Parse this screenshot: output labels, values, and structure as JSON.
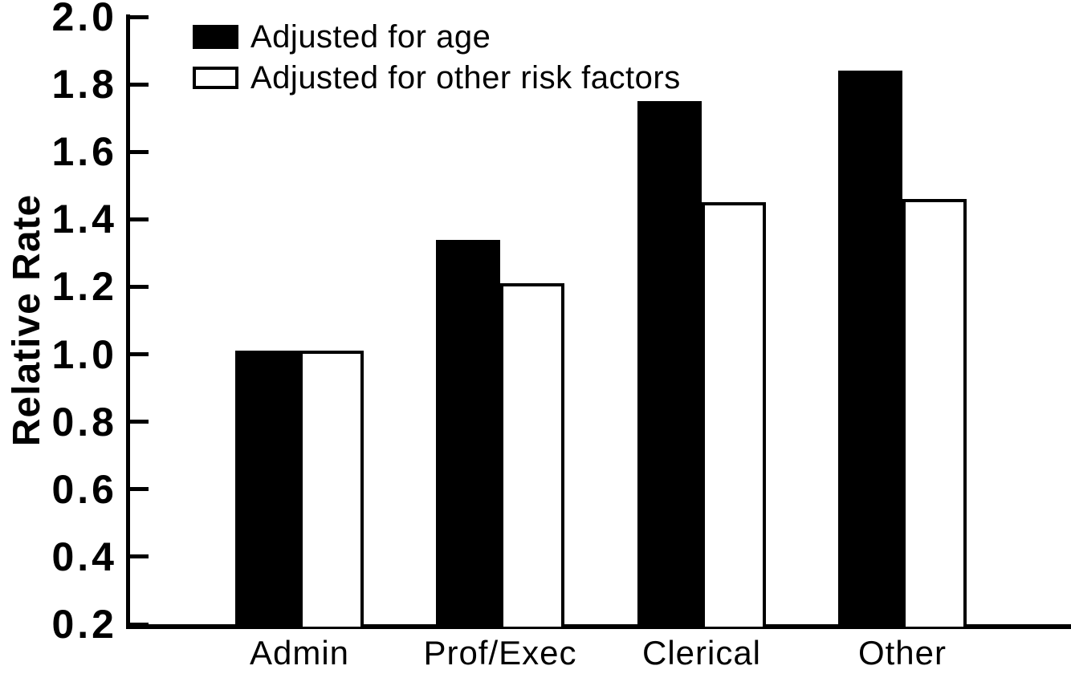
{
  "chart_data": {
    "type": "bar",
    "ylabel": "Relative Rate",
    "xlabel": "",
    "categories": [
      "Admin",
      "Prof/Exec",
      "Clerical",
      "Other"
    ],
    "series": [
      {
        "name": "Adjusted for age",
        "fill": "#000000",
        "style": "filled",
        "values": [
          1.01,
          1.34,
          1.75,
          1.84
        ]
      },
      {
        "name": "Adjusted for other risk factors",
        "fill": "#ffffff",
        "style": "open",
        "values": [
          1.01,
          1.21,
          1.45,
          1.46
        ]
      }
    ],
    "ylim": [
      0.2,
      2.0
    ],
    "yticks": [
      2.0,
      1.8,
      1.6,
      1.4,
      1.2,
      1.0,
      0.8,
      0.6,
      0.4,
      0.2
    ],
    "ytick_label_format": "one-decimal",
    "bar_baseline": 0.2,
    "grid": false,
    "legend_position": "top-left",
    "colors": {
      "axis": "#000000",
      "background": "#ffffff",
      "text": "#000000"
    }
  }
}
